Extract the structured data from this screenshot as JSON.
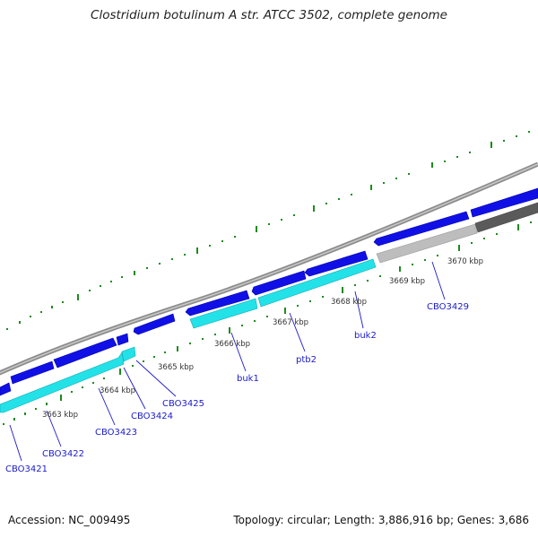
{
  "title": "Clostridium botulinum A str. ATCC 3502, complete genome",
  "accession": "Accession: NC_009495",
  "summary": "Topology: circular; Length: 3,886,916 bp; Genes: 3,686",
  "colors": {
    "backbone": "#8c8c8c",
    "forward_gene": "#1010e6",
    "reverse_gene": "#22e2e8",
    "light_gray_feature": "#bdbdbd",
    "dark_gray_feature": "#5a5a5a",
    "gc_ticks": "#1e8a1e",
    "label_color": "#1a1acc"
  },
  "kbp_labels": [
    "3663 kbp",
    "3664 kbp",
    "3665 kbp",
    "3666 kbp",
    "3667 kbp",
    "3668 kbp",
    "3669 kbp",
    "3670 kbp"
  ],
  "gene_labels": [
    "CBO3421",
    "CBO3422",
    "CBO3423",
    "CBO3424",
    "CBO3425",
    "buk1",
    "ptb2",
    "buk2",
    "CBO3429"
  ]
}
